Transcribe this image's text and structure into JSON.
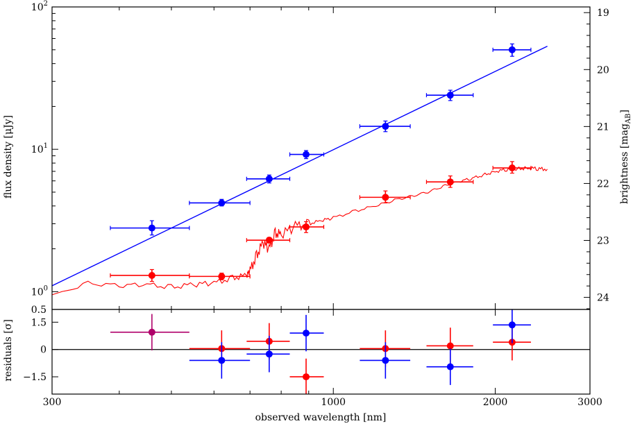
{
  "chart_data": [
    {
      "type": "scatter",
      "panel": "main",
      "title": "",
      "xlabel": "observed wavelength [nm]",
      "ylabel": "flux density [μJy]",
      "y2label_main": "brightness [mag",
      "y2label_sub": "AB",
      "y2label_end": "]",
      "xscale": "log",
      "yscale": "log",
      "xlim": [
        300,
        3000
      ],
      "ylim": [
        0.75,
        100
      ],
      "x_ticks": [
        300,
        1000,
        2000,
        3000
      ],
      "x_tick_labels": [
        "300",
        "1000",
        "2000",
        "3000"
      ],
      "y_ticks": [
        {
          "value": 1,
          "base": "10",
          "exp": "0"
        },
        {
          "value": 10,
          "base": "10",
          "exp": "1"
        },
        {
          "value": 100,
          "base": "10",
          "exp": "2"
        }
      ],
      "y2_ticks": [
        "19",
        "20",
        "21",
        "22",
        "23",
        "24"
      ],
      "y2_tick_values": [
        19,
        20,
        21,
        22,
        23,
        24
      ],
      "series": [
        {
          "color": "#0000ff",
          "points": [
            {
              "x": 460,
              "xlo": 385,
              "xhi": 540,
              "y": 2.8,
              "ylo": 2.5,
              "yhi": 3.15
            },
            {
              "x": 620,
              "xlo": 540,
              "xhi": 700,
              "y": 4.2,
              "ylo": 4.0,
              "yhi": 4.45
            },
            {
              "x": 760,
              "xlo": 690,
              "xhi": 830,
              "y": 6.2,
              "ylo": 5.8,
              "yhi": 6.6
            },
            {
              "x": 890,
              "xlo": 830,
              "xhi": 960,
              "y": 9.2,
              "ylo": 8.6,
              "yhi": 9.8
            },
            {
              "x": 1250,
              "xlo": 1120,
              "xhi": 1390,
              "y": 14.5,
              "ylo": 13.3,
              "yhi": 15.8
            },
            {
              "x": 1650,
              "xlo": 1490,
              "xhi": 1820,
              "y": 24,
              "ylo": 22,
              "yhi": 26
            },
            {
              "x": 2150,
              "xlo": 1980,
              "xhi": 2330,
              "y": 50,
              "ylo": 45,
              "yhi": 55
            }
          ],
          "fit_line": {
            "x": [
              300,
              2500
            ],
            "y": [
              1.1,
              53
            ]
          }
        },
        {
          "color": "#ff0000",
          "points": [
            {
              "x": 460,
              "xlo": 385,
              "xhi": 540,
              "y": 1.3,
              "ylo": 1.18,
              "yhi": 1.43
            },
            {
              "x": 620,
              "xlo": 540,
              "xhi": 700,
              "y": 1.28,
              "ylo": 1.21,
              "yhi": 1.35
            },
            {
              "x": 760,
              "xlo": 690,
              "xhi": 830,
              "y": 2.3,
              "ylo": 2.2,
              "yhi": 2.4
            },
            {
              "x": 890,
              "xlo": 830,
              "xhi": 960,
              "y": 2.85,
              "ylo": 2.6,
              "yhi": 3.1
            },
            {
              "x": 1250,
              "xlo": 1120,
              "xhi": 1390,
              "y": 4.6,
              "ylo": 4.2,
              "yhi": 5.1
            },
            {
              "x": 1650,
              "xlo": 1490,
              "xhi": 1820,
              "y": 5.9,
              "ylo": 5.4,
              "yhi": 6.5
            },
            {
              "x": 2150,
              "xlo": 1980,
              "xhi": 2330,
              "y": 7.4,
              "ylo": 6.8,
              "yhi": 8.2
            }
          ],
          "model_curve": {
            "x": [
              300,
              350,
              400,
              450,
              500,
              550,
              600,
              650,
              690,
              700,
              720,
              740,
              760,
              780,
              800,
              850,
              900,
              950,
              1000,
              1100,
              1200,
              1300,
              1400,
              1500,
              1600,
              1700,
              1800,
              1900,
              2000,
              2100,
              2200,
              2300,
              2400,
              2500
            ],
            "y": [
              0.95,
              1.15,
              1.1,
              1.12,
              1.08,
              1.12,
              1.15,
              1.25,
              1.3,
              1.4,
              1.8,
              2.2,
              2.0,
              2.6,
              2.5,
              2.9,
              3.0,
              3.15,
              3.3,
              3.7,
              4.0,
              4.4,
              4.7,
              5.0,
              5.5,
              5.9,
              6.2,
              6.6,
              7.0,
              7.2,
              7.3,
              7.4,
              7.3,
              7.25
            ]
          }
        }
      ]
    },
    {
      "type": "scatter",
      "panel": "residuals",
      "ylabel": "residuals [σ]",
      "xlim": [
        300,
        3000
      ],
      "ylim": [
        -2.45,
        2.2
      ],
      "y_ticks": [
        1.5,
        0,
        -1.5
      ],
      "y_tick_labels": [
        "1.5",
        "0",
        "−1.5"
      ],
      "top_label": "0.5",
      "series": [
        {
          "color": "#0000ff",
          "points": [
            {
              "x": 620,
              "xlo": 540,
              "xhi": 700,
              "y": -0.6,
              "ylo": -1.6,
              "yhi": 0.4
            },
            {
              "x": 760,
              "xlo": 690,
              "xhi": 830,
              "y": -0.25,
              "ylo": -1.25,
              "yhi": 0.75
            },
            {
              "x": 890,
              "xlo": 830,
              "xhi": 960,
              "y": 0.9,
              "ylo": -0.1,
              "yhi": 1.9
            },
            {
              "x": 1250,
              "xlo": 1120,
              "xhi": 1390,
              "y": -0.6,
              "ylo": -1.6,
              "yhi": 0.4
            },
            {
              "x": 1650,
              "xlo": 1490,
              "xhi": 1820,
              "y": -0.95,
              "ylo": -1.95,
              "yhi": 0.05
            },
            {
              "x": 2150,
              "xlo": 1980,
              "xhi": 2330,
              "y": 1.35,
              "ylo": 0.35,
              "yhi": 2.35
            }
          ]
        },
        {
          "color": "#ff0000",
          "points": [
            {
              "x": 460,
              "xlo": 385,
              "xhi": 540,
              "y": 0.95,
              "ylo": -0.05,
              "yhi": 1.95
            },
            {
              "x": 620,
              "xlo": 540,
              "xhi": 700,
              "y": 0.05,
              "ylo": -0.95,
              "yhi": 1.05
            },
            {
              "x": 760,
              "xlo": 690,
              "xhi": 830,
              "y": 0.45,
              "ylo": -0.55,
              "yhi": 1.45
            },
            {
              "x": 890,
              "xlo": 830,
              "xhi": 960,
              "y": -1.5,
              "ylo": -2.5,
              "yhi": -0.5
            },
            {
              "x": 1250,
              "xlo": 1120,
              "xhi": 1390,
              "y": 0.05,
              "ylo": -0.95,
              "yhi": 1.05
            },
            {
              "x": 1650,
              "xlo": 1490,
              "xhi": 1820,
              "y": 0.2,
              "ylo": -0.8,
              "yhi": 1.2
            },
            {
              "x": 2150,
              "xlo": 1980,
              "xhi": 2330,
              "y": 0.4,
              "ylo": -0.6,
              "yhi": 1.4
            }
          ],
          "overlap_color": "#b0006a"
        }
      ]
    }
  ]
}
